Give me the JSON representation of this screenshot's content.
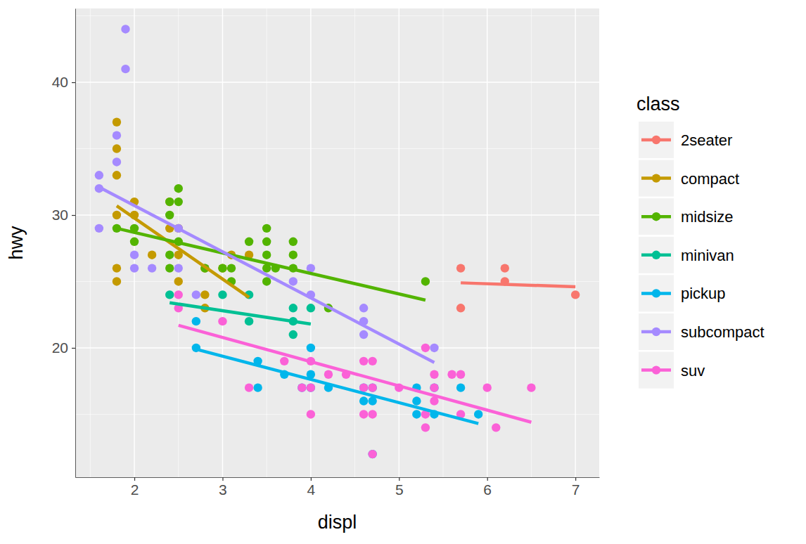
{
  "chart_data": {
    "type": "scatter",
    "x_label": "displ",
    "y_label": "hwy",
    "legend_title": "class",
    "legend": "right",
    "grid": true,
    "xlim": [
      1.33,
      7.27
    ],
    "ylim": [
      10.26,
      45.56
    ],
    "xticks": [
      2,
      3,
      4,
      5,
      6,
      7
    ],
    "yticks": [
      20,
      30,
      40
    ],
    "xminor": [
      1.5,
      2.5,
      3.5,
      4.5,
      5.5,
      6.5
    ],
    "yminor": [
      15,
      25,
      35,
      45
    ],
    "series": [
      {
        "name": "2seater",
        "color": "#F8766D",
        "x": [
          5.7,
          5.7,
          6.2,
          6.2,
          7.0
        ],
        "values": [
          26,
          23,
          26,
          25,
          24
        ],
        "fit_x": [
          5.7,
          7.0
        ],
        "fit_y": [
          24.9,
          24.6
        ]
      },
      {
        "name": "compact",
        "color": "#C49A00",
        "x": [
          1.8,
          1.8,
          1.8,
          1.8,
          1.8,
          1.8,
          2.0,
          2.0,
          2.2,
          2.4,
          2.4,
          2.5,
          2.5,
          2.5,
          2.8,
          2.8,
          2.8,
          3.0,
          3.1,
          3.3
        ],
        "values": [
          37,
          35,
          33,
          30,
          26,
          25,
          31,
          30,
          27,
          31,
          29,
          27,
          29,
          25,
          26,
          24,
          23,
          26,
          27,
          27
        ],
        "fit_x": [
          1.8,
          3.3
        ],
        "fit_y": [
          30.7,
          23.8
        ]
      },
      {
        "name": "midsize",
        "color": "#53B400",
        "x": [
          1.8,
          2.0,
          2.0,
          2.4,
          2.4,
          2.4,
          2.4,
          2.5,
          2.5,
          2.5,
          2.8,
          3.0,
          3.1,
          3.1,
          3.3,
          3.5,
          3.5,
          3.5,
          3.5,
          3.5,
          3.6,
          3.8,
          3.8,
          3.8,
          4.2,
          5.3
        ],
        "values": [
          29,
          29,
          28,
          31,
          30,
          27,
          26,
          32,
          31,
          28,
          26,
          26,
          26,
          25,
          28,
          29,
          28,
          27,
          26,
          25,
          26,
          28,
          27,
          26,
          23,
          25
        ],
        "fit_x": [
          1.8,
          5.3
        ],
        "fit_y": [
          29.0,
          23.6
        ]
      },
      {
        "name": "minivan",
        "color": "#00C094",
        "x": [
          2.4,
          3.0,
          3.3,
          3.3,
          3.8,
          3.8,
          3.8,
          4.0
        ],
        "values": [
          24,
          24,
          24,
          22,
          23,
          22,
          21,
          23
        ],
        "fit_x": [
          2.4,
          4.0
        ],
        "fit_y": [
          23.4,
          21.8
        ]
      },
      {
        "name": "pickup",
        "color": "#00B6EB",
        "x": [
          2.7,
          2.7,
          3.4,
          3.4,
          3.7,
          3.9,
          4.0,
          4.0,
          4.0,
          4.2,
          4.6,
          4.6,
          4.7,
          4.7,
          4.7,
          5.2,
          5.2,
          5.2,
          5.4,
          5.4,
          5.7,
          5.9
        ],
        "values": [
          22,
          20,
          19,
          17,
          18,
          17,
          20,
          18,
          17,
          17,
          17,
          16,
          17,
          16,
          12,
          17,
          16,
          15,
          17,
          15,
          17,
          15
        ],
        "fit_x": [
          2.7,
          5.9
        ],
        "fit_y": [
          19.9,
          14.3
        ]
      },
      {
        "name": "subcompact",
        "color": "#A58AFF",
        "x": [
          1.6,
          1.6,
          1.6,
          1.8,
          1.8,
          1.9,
          1.9,
          2.0,
          2.0,
          2.2,
          2.5,
          2.5,
          2.7,
          3.8,
          4.0,
          4.0,
          4.6,
          4.6,
          4.6,
          5.4
        ],
        "values": [
          33,
          32,
          29,
          36,
          34,
          44,
          41,
          27,
          26,
          26,
          29,
          26,
          24,
          25,
          26,
          24,
          23,
          22,
          21,
          20
        ],
        "fit_x": [
          1.6,
          5.4
        ],
        "fit_y": [
          32.1,
          18.9
        ]
      },
      {
        "name": "suv",
        "color": "#FB61D7",
        "x": [
          2.5,
          2.5,
          3.0,
          3.3,
          3.7,
          3.9,
          4.0,
          4.0,
          4.0,
          4.2,
          4.4,
          4.6,
          4.6,
          4.6,
          4.7,
          4.7,
          4.7,
          4.7,
          5.0,
          5.3,
          5.3,
          5.3,
          5.4,
          5.4,
          5.4,
          5.6,
          5.7,
          5.7,
          6.0,
          6.1,
          6.5
        ],
        "values": [
          24,
          23,
          22,
          17,
          19,
          17,
          19,
          17,
          15,
          18,
          18,
          19,
          17,
          15,
          19,
          17,
          15,
          12,
          17,
          20,
          15,
          14,
          18,
          17,
          16,
          18,
          18,
          15,
          17,
          14,
          17
        ],
        "fit_x": [
          2.5,
          6.5
        ],
        "fit_y": [
          21.7,
          14.4
        ]
      }
    ]
  }
}
